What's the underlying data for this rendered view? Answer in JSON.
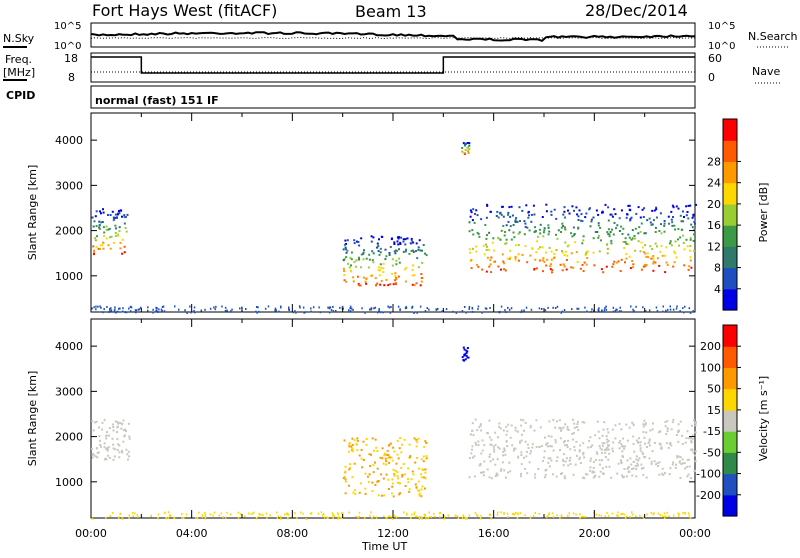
{
  "header": {
    "station": "Fort Hays West (fitACF)",
    "beam": "Beam 13",
    "date": "28/Dec/2014"
  },
  "noise_panel": {
    "left_label": "N.Sky",
    "right_label": "N.Search",
    "ticks": [
      "10^5",
      "10^0"
    ]
  },
  "freq_panel": {
    "left_label_1": "Freq.",
    "left_label_2": "[MHz]",
    "left_ticks": [
      "18",
      "8"
    ],
    "right_label": "Nave",
    "right_ticks": [
      "60",
      "0"
    ],
    "cpid_label": "CPID",
    "mode_text": "normal (fast) 151 IF"
  },
  "chart_data": [
    {
      "type": "heatmap",
      "name": "power",
      "ylabel": "Slant Range [km]",
      "yticks": [
        1000,
        2000,
        3000,
        4000
      ],
      "ylim": [
        200,
        4600
      ],
      "xlabel": "Time UT",
      "xticks": [
        "00:00",
        "04:00",
        "08:00",
        "12:00",
        "16:00",
        "20:00",
        "00:00"
      ],
      "xlim_hours": [
        0,
        24
      ],
      "colorbar": {
        "label": "Power [dB]",
        "ticks": [
          "4",
          "8",
          "12",
          "16",
          "20",
          "24",
          "28"
        ],
        "colors": [
          "#0000e6",
          "#1d4fc0",
          "#2f7a6a",
          "#3b9a45",
          "#9acd32",
          "#ffd700",
          "#ff9900",
          "#ff5a00",
          "#ff0000"
        ]
      },
      "regions": [
        {
          "t0": 0.0,
          "t1": 1.5,
          "r0": 1500,
          "r1": 2500
        },
        {
          "t0": 10.0,
          "t1": 13.3,
          "r0": 800,
          "r1": 1900
        },
        {
          "t0": 14.7,
          "t1": 15.0,
          "r0": 3700,
          "r1": 4000
        },
        {
          "t0": 15.0,
          "t1": 24.0,
          "r0": 1100,
          "r1": 2600
        }
      ]
    },
    {
      "type": "heatmap",
      "name": "velocity",
      "ylabel": "Slant Range [km]",
      "yticks": [
        1000,
        2000,
        3000,
        4000
      ],
      "ylim": [
        200,
        4600
      ],
      "xlabel": "Time UT",
      "xticks": [
        "00:00",
        "04:00",
        "08:00",
        "12:00",
        "16:00",
        "20:00",
        "00:00"
      ],
      "xlim_hours": [
        0,
        24
      ],
      "colorbar": {
        "label": "Velocity [m s⁻¹]",
        "ticks": [
          "200",
          "100",
          "50",
          "15",
          "-15",
          "-50",
          "-100",
          "-200"
        ],
        "colors": [
          "#0000e6",
          "#2050c0",
          "#2f8a4a",
          "#6acd32",
          "#c8c8be",
          "#ffd700",
          "#ff9900",
          "#ff5a00",
          "#ff0000"
        ]
      },
      "regions": [
        {
          "t0": 0.0,
          "t1": 1.5,
          "r0": 1500,
          "r1": 2400
        },
        {
          "t0": 10.0,
          "t1": 13.3,
          "r0": 700,
          "r1": 2000
        },
        {
          "t0": 14.7,
          "t1": 15.0,
          "r0": 3700,
          "r1": 4000
        },
        {
          "t0": 15.0,
          "t1": 24.0,
          "r0": 1100,
          "r1": 2400
        }
      ]
    }
  ]
}
